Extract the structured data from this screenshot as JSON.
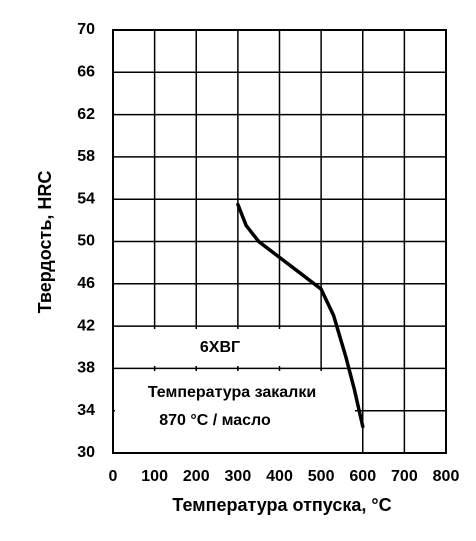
{
  "chart_data": {
    "type": "line",
    "x_label": "Температура отпуска, °C",
    "y_label": "Твердость, HRC",
    "annotations": [
      "6ХВГ",
      "Температура закалки",
      "870 °C / масло"
    ],
    "x": [
      300,
      320,
      350,
      400,
      450,
      500,
      530,
      560,
      580,
      600
    ],
    "values": [
      53.5,
      51.5,
      50,
      48.5,
      47,
      45.5,
      43,
      39,
      36,
      32.5
    ],
    "color": "#000000",
    "xlim": [
      0,
      800
    ],
    "xticks": [
      0,
      100,
      200,
      300,
      400,
      500,
      600,
      700,
      800
    ],
    "ylim": [
      30,
      70
    ],
    "yticks": [
      30,
      34,
      38,
      42,
      46,
      50,
      54,
      58,
      62,
      66,
      70
    ],
    "grid": true
  }
}
